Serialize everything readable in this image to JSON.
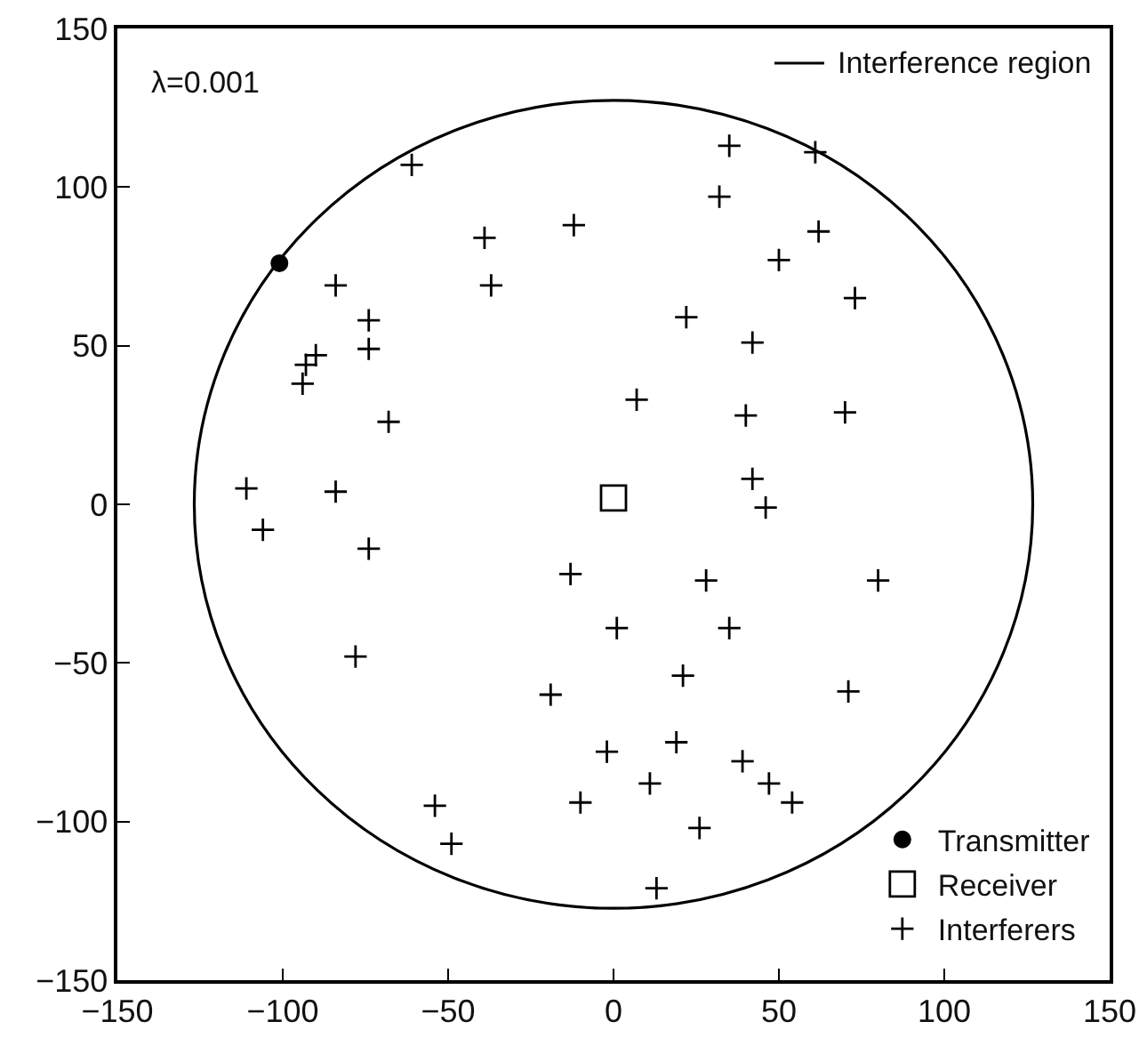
{
  "chart_data": {
    "type": "scatter",
    "legend": "bottom right",
    "grid": false,
    "xlim": [
      -150,
      150
    ],
    "xticks": [
      -150,
      -100,
      -50,
      0,
      50,
      100,
      150
    ],
    "ylim": [
      -150,
      150
    ],
    "yticks": [
      -150,
      -100,
      -50,
      0,
      50,
      100,
      150
    ],
    "annotations": [
      "λ=0.001",
      "Interference region"
    ],
    "series": [
      {
        "name": "Transmitter",
        "type": "scatter",
        "color": "#000000",
        "marker": "circle",
        "x": [
          -101
        ],
        "values": [
          76
        ]
      },
      {
        "name": "Receiver",
        "type": "scatter",
        "color": "#000000",
        "marker": "square",
        "x": [
          0
        ],
        "values": [
          2
        ]
      },
      {
        "name": "Interferers",
        "type": "scatter",
        "color": "#000000",
        "marker": "cross",
        "x": [
          -61,
          -39,
          -12,
          -84,
          -37,
          -74,
          -74,
          -90,
          -93,
          -94,
          -68,
          -111,
          -84,
          35,
          61,
          32,
          62,
          50,
          73,
          22,
          42,
          7,
          40,
          70,
          42,
          46,
          -106,
          -74,
          -13,
          -78,
          -19,
          -54,
          -49,
          -10,
          28,
          80,
          1,
          35,
          21,
          71,
          -2,
          19,
          39,
          11,
          47,
          54,
          26,
          13
        ],
        "values": [
          107,
          84,
          88,
          69,
          69,
          58,
          49,
          47,
          44,
          38,
          26,
          5,
          4,
          113,
          111,
          97,
          86,
          77,
          65,
          59,
          51,
          33,
          28,
          29,
          8,
          -1,
          -8,
          -14,
          -22,
          -48,
          -60,
          -95,
          -107,
          -94,
          -24,
          -24,
          -39,
          -39,
          -54,
          -59,
          -78,
          -75,
          -81,
          -88,
          -88,
          -94,
          -102,
          -121
        ]
      }
    ]
  }
}
